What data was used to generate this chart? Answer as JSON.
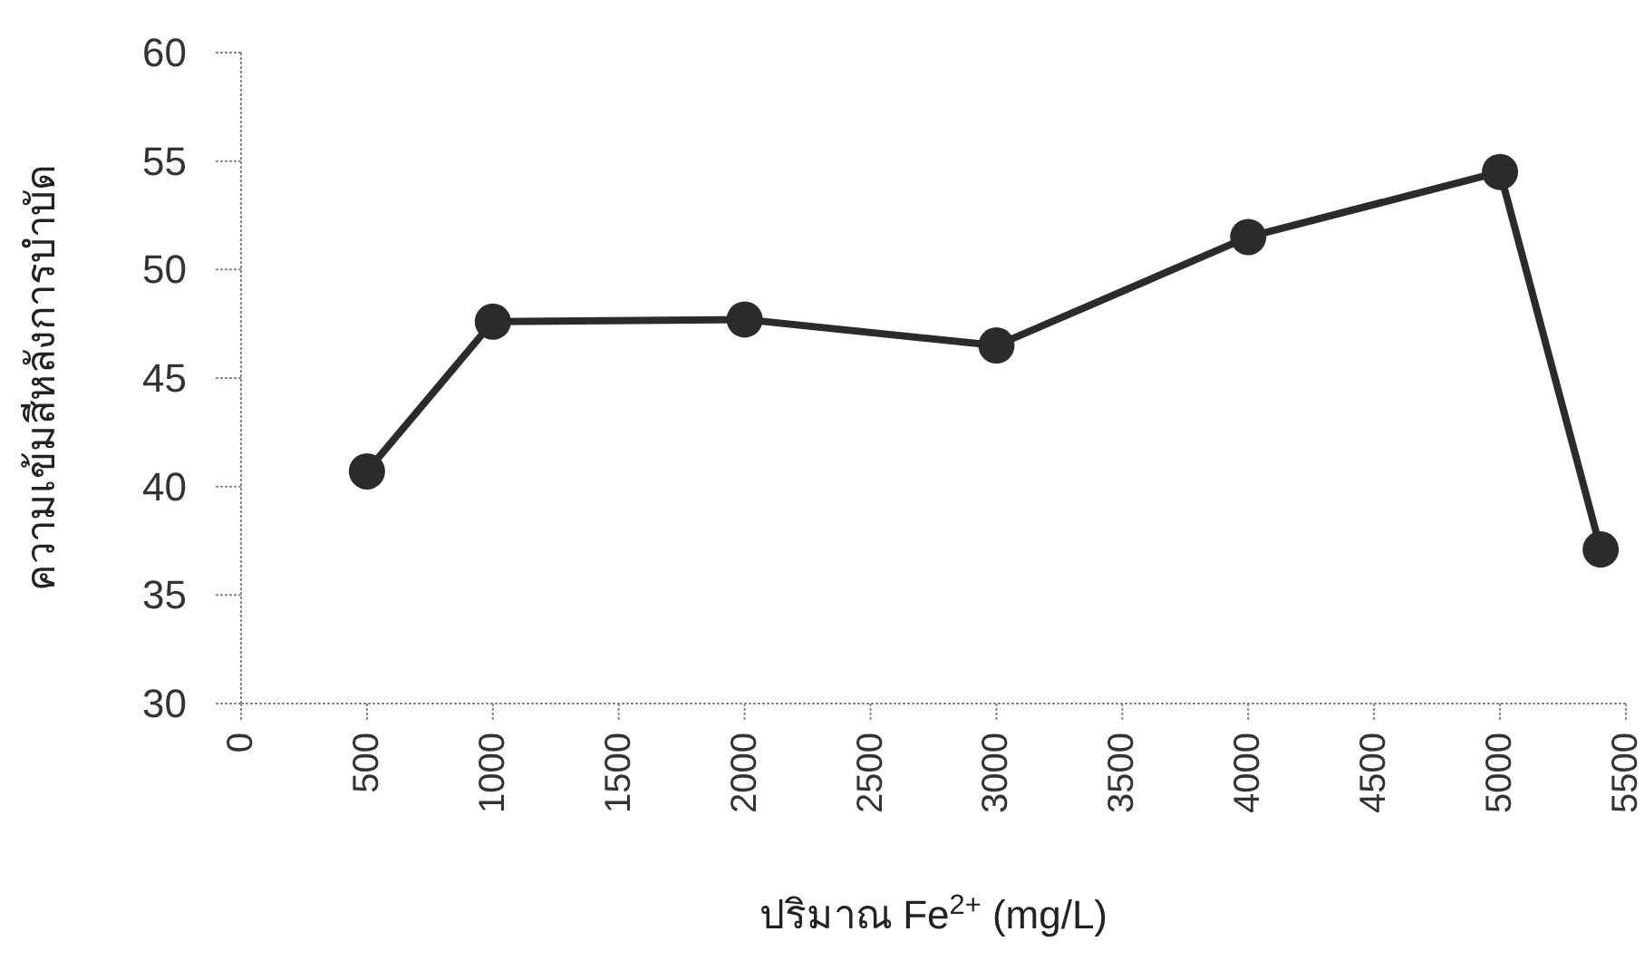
{
  "chart_data": {
    "type": "line",
    "xlabel": "ปริมาณ Fe$^{2+}$ (mg/L)",
    "ylabel": "ความเข้มสีหลังการบำบัด",
    "x": [
      500,
      1000,
      2000,
      3000,
      4000,
      5000,
      5400
    ],
    "series": [
      {
        "color": "#2b2b2b",
        "values": [
          40.7,
          47.6,
          47.7,
          46.5,
          51.5,
          54.5,
          37.1
        ]
      }
    ],
    "xlim": [
      0,
      5500
    ],
    "xticks": [
      0,
      500,
      1000,
      1500,
      2000,
      2500,
      3000,
      3500,
      4000,
      4500,
      5000,
      5500
    ],
    "ylim": [
      30,
      60
    ],
    "yticks": [
      30,
      35,
      40,
      45,
      50,
      55,
      60
    ],
    "marker": "circle",
    "line_style": "solid",
    "grid": false
  }
}
